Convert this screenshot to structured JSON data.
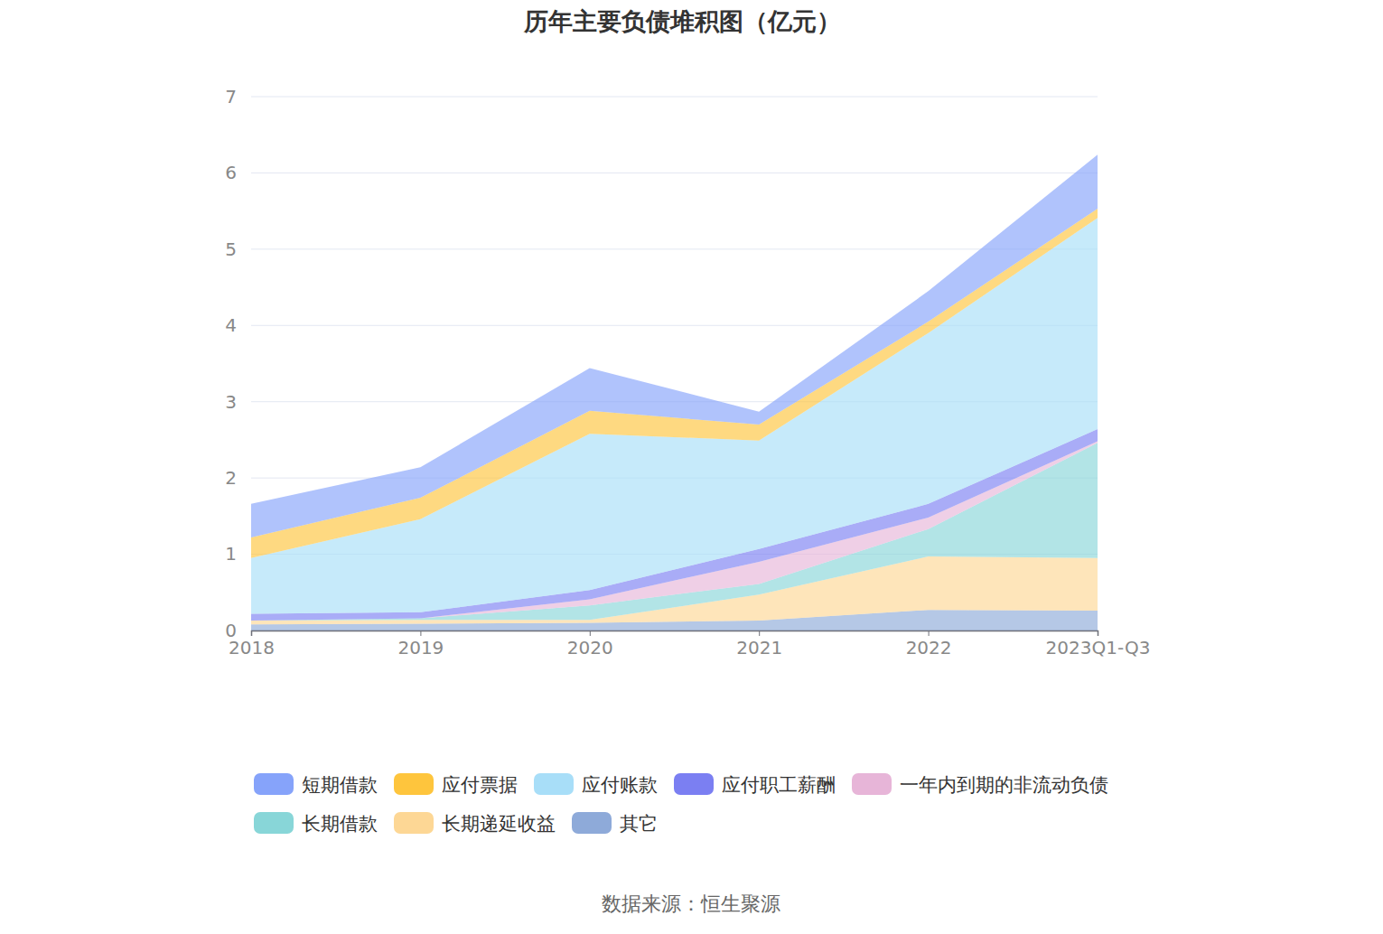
{
  "chart_data": {
    "type": "area",
    "title": "历年主要负债堆积图（亿元）",
    "annotations": [
      "数据来源：恒生聚源"
    ],
    "categories": [
      "2018",
      "2019",
      "2020",
      "2021",
      "2022",
      "2023Q1-Q3"
    ],
    "stacked": true,
    "grid": true,
    "legend": "bottom",
    "ylim": [
      0,
      7
    ],
    "yticks": [
      0,
      1,
      2,
      3,
      4,
      5,
      6,
      7
    ],
    "series": [
      {
        "name": "短期借款",
        "color": "#86a3fa",
        "values": [
          0.44,
          0.4,
          0.56,
          0.17,
          0.4,
          0.71
        ]
      },
      {
        "name": "应付票据",
        "color": "#fec53d",
        "values": [
          0.27,
          0.28,
          0.3,
          0.21,
          0.15,
          0.12
        ]
      },
      {
        "name": "应付账款",
        "color": "#a8def8",
        "values": [
          0.73,
          1.22,
          2.05,
          1.42,
          2.24,
          2.77
        ]
      },
      {
        "name": "应付职工薪酬",
        "color": "#7b7ff2",
        "values": [
          0.09,
          0.08,
          0.12,
          0.17,
          0.18,
          0.16
        ]
      },
      {
        "name": "一年内到期的非流动负债",
        "color": "#e7b5d8",
        "values": [
          0,
          0,
          0.08,
          0.29,
          0.15,
          0.02
        ]
      },
      {
        "name": "长期借款",
        "color": "#88d6d8",
        "values": [
          0,
          0.02,
          0.19,
          0.14,
          0.36,
          1.51
        ]
      },
      {
        "name": "长期递延收益",
        "color": "#fdd795",
        "values": [
          0.05,
          0.05,
          0.04,
          0.34,
          0.7,
          0.69
        ]
      },
      {
        "name": "其它",
        "color": "#8eaad9",
        "values": [
          0.08,
          0.09,
          0.1,
          0.13,
          0.27,
          0.26
        ]
      }
    ]
  }
}
